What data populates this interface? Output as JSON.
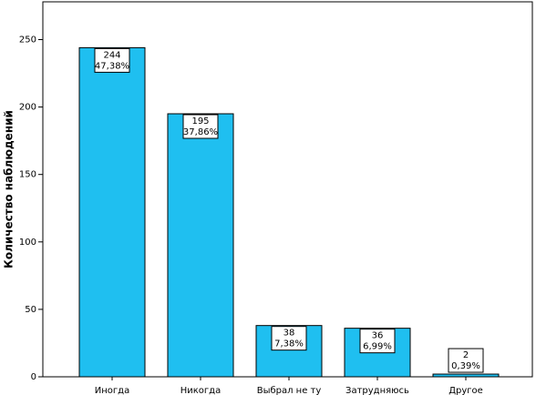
{
  "chart_data": {
    "type": "bar",
    "y_label": "Количество наблюдений",
    "categories": [
      "Иногда",
      "Никогда",
      "Выбрал не ту",
      "Затрудняюсь",
      "Другое"
    ],
    "values": [
      244,
      195,
      38,
      36,
      2
    ],
    "percents": {
      "values": [
        47.38,
        37.86,
        7.38,
        6.99,
        0.39
      ],
      "value_labels": [
        "47,38%",
        "37,86%",
        "7,38%",
        "6,99%",
        "0,39%"
      ]
    },
    "color": "#1fbff0",
    "ylim": [
      0,
      278
    ],
    "yticks": [
      0,
      50,
      100,
      150,
      200,
      250
    ],
    "grid": false
  }
}
